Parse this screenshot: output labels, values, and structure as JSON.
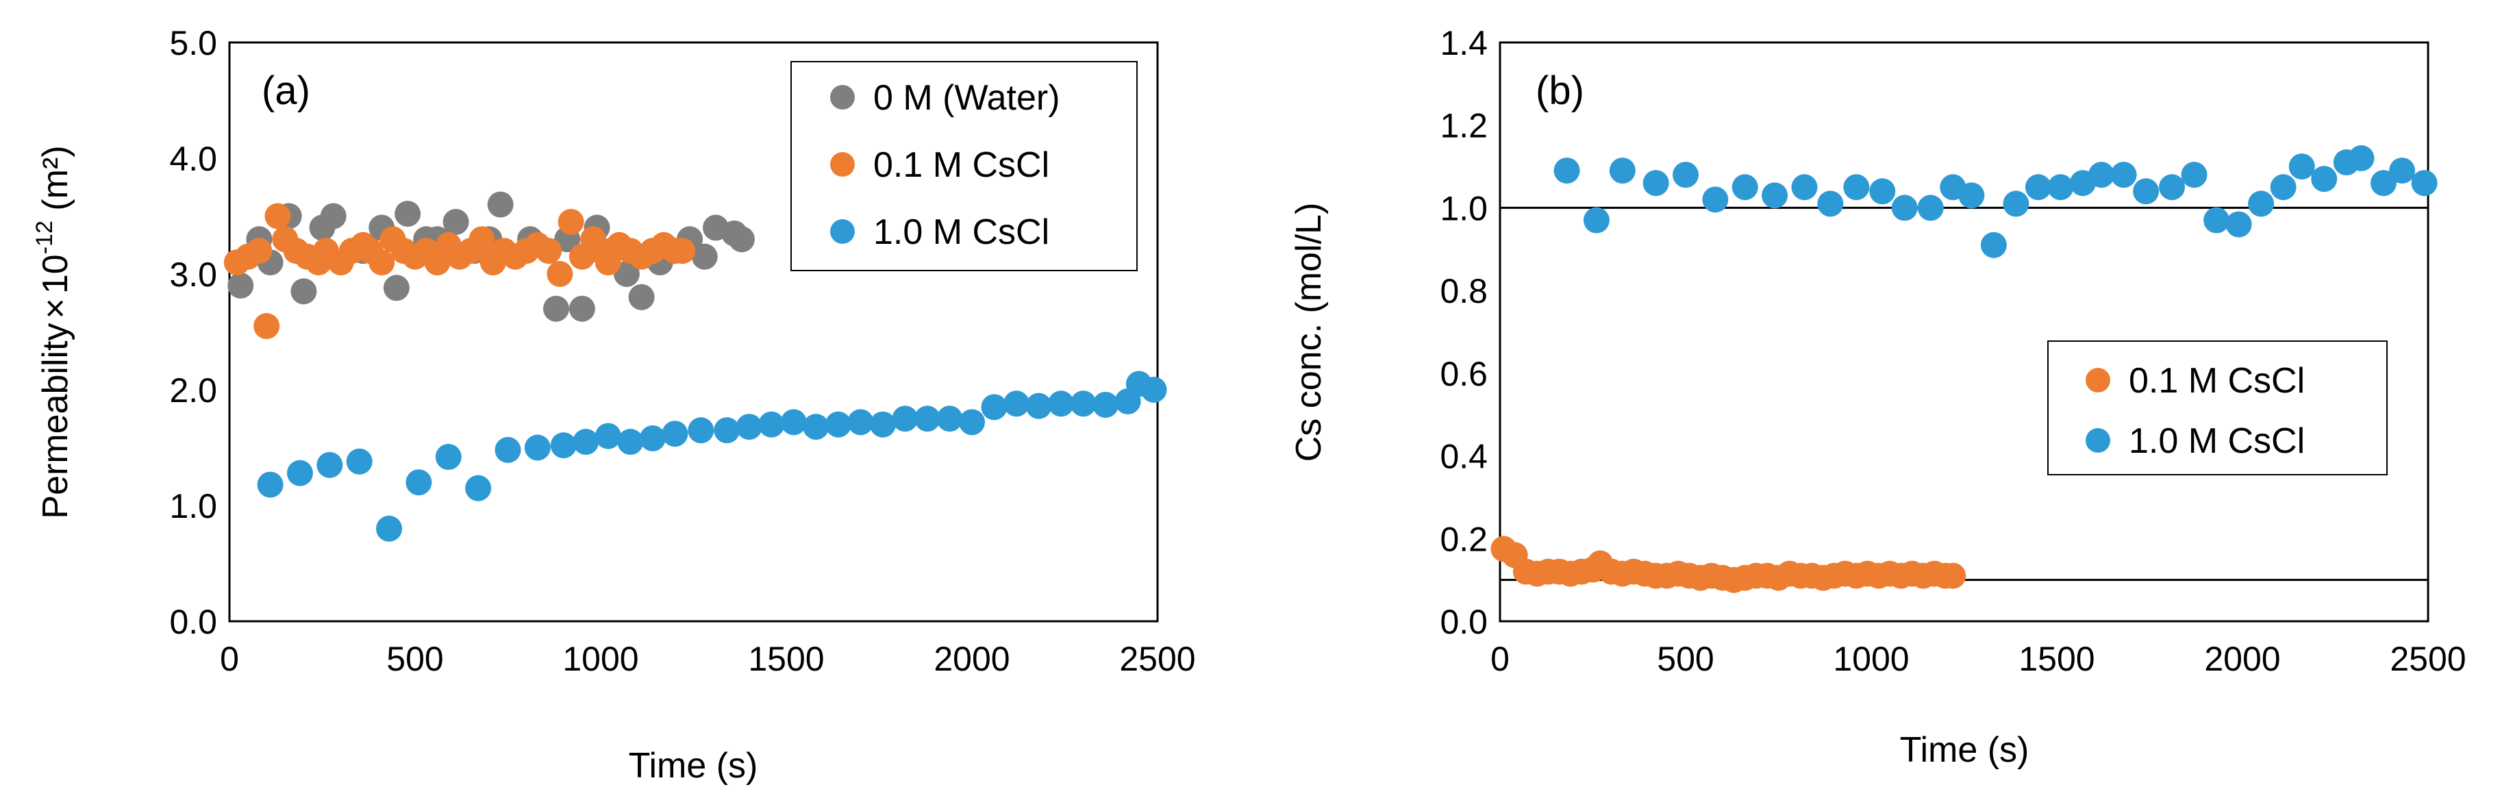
{
  "chart_data": [
    {
      "type": "scatter",
      "panel_label": "(a)",
      "xlabel": "Time (s)",
      "ylabel_main": "Permeability",
      "ylabel_times": "×",
      "ylabel_base": "10",
      "ylabel_exp": "-12",
      "ylabel_unit": " (m²)",
      "xlim": [
        0,
        2500
      ],
      "ylim": [
        0.0,
        5.0
      ],
      "x_ticks": [
        0,
        500,
        1000,
        1500,
        2000,
        2500
      ],
      "y_ticks": [
        0.0,
        1.0,
        2.0,
        3.0,
        4.0,
        5.0
      ],
      "x_tick_labels": [
        "0",
        "500",
        "1000",
        "1500",
        "2000",
        "2500"
      ],
      "y_tick_labels": [
        "0.0",
        "1.0",
        "2.0",
        "3.0",
        "4.0",
        "5.0"
      ],
      "grid": false,
      "legend_position": "top-right",
      "series": [
        {
          "name": "0 M (Water)",
          "color": "#7f7f7f",
          "points": [
            [
              30,
              2.9
            ],
            [
              80,
              3.3
            ],
            [
              110,
              3.1
            ],
            [
              160,
              3.5
            ],
            [
              200,
              2.85
            ],
            [
              250,
              3.4
            ],
            [
              280,
              3.5
            ],
            [
              360,
              3.2
            ],
            [
              410,
              3.4
            ],
            [
              450,
              2.88
            ],
            [
              480,
              3.52
            ],
            [
              530,
              3.3
            ],
            [
              560,
              3.3
            ],
            [
              610,
              3.45
            ],
            [
              660,
              3.2
            ],
            [
              700,
              3.3
            ],
            [
              730,
              3.6
            ],
            [
              810,
              3.3
            ],
            [
              880,
              2.7
            ],
            [
              910,
              3.3
            ],
            [
              950,
              2.7
            ],
            [
              990,
              3.4
            ],
            [
              1030,
              3.2
            ],
            [
              1070,
              3.0
            ],
            [
              1110,
              2.8
            ],
            [
              1160,
              3.1
            ],
            [
              1200,
              3.2
            ],
            [
              1240,
              3.3
            ],
            [
              1280,
              3.15
            ],
            [
              1310,
              3.4
            ],
            [
              1360,
              3.35
            ],
            [
              1380,
              3.3
            ]
          ]
        },
        {
          "name": "0.1 M CsCl",
          "color": "#ed7d31",
          "points": [
            [
              20,
              3.1
            ],
            [
              50,
              3.15
            ],
            [
              80,
              3.2
            ],
            [
              100,
              2.55
            ],
            [
              130,
              3.5
            ],
            [
              150,
              3.3
            ],
            [
              180,
              3.2
            ],
            [
              210,
              3.15
            ],
            [
              240,
              3.1
            ],
            [
              260,
              3.2
            ],
            [
              300,
              3.1
            ],
            [
              330,
              3.2
            ],
            [
              360,
              3.25
            ],
            [
              380,
              3.2
            ],
            [
              410,
              3.1
            ],
            [
              440,
              3.3
            ],
            [
              470,
              3.2
            ],
            [
              500,
              3.15
            ],
            [
              530,
              3.2
            ],
            [
              560,
              3.1
            ],
            [
              590,
              3.25
            ],
            [
              620,
              3.15
            ],
            [
              650,
              3.2
            ],
            [
              680,
              3.3
            ],
            [
              710,
              3.1
            ],
            [
              740,
              3.2
            ],
            [
              770,
              3.15
            ],
            [
              800,
              3.2
            ],
            [
              830,
              3.25
            ],
            [
              860,
              3.2
            ],
            [
              890,
              3.0
            ],
            [
              920,
              3.45
            ],
            [
              950,
              3.15
            ],
            [
              980,
              3.3
            ],
            [
              1000,
              3.2
            ],
            [
              1020,
              3.1
            ],
            [
              1050,
              3.25
            ],
            [
              1080,
              3.2
            ],
            [
              1110,
              3.15
            ],
            [
              1140,
              3.2
            ],
            [
              1170,
              3.25
            ],
            [
              1200,
              3.2
            ],
            [
              1220,
              3.2
            ]
          ]
        },
        {
          "name": "1.0 M CsCl",
          "color": "#2e9ad5",
          "points": [
            [
              110,
              1.18
            ],
            [
              190,
              1.28
            ],
            [
              270,
              1.35
            ],
            [
              350,
              1.38
            ],
            [
              430,
              0.8
            ],
            [
              510,
              1.2
            ],
            [
              590,
              1.42
            ],
            [
              670,
              1.15
            ],
            [
              750,
              1.48
            ],
            [
              830,
              1.5
            ],
            [
              900,
              1.52
            ],
            [
              960,
              1.55
            ],
            [
              1020,
              1.6
            ],
            [
              1080,
              1.55
            ],
            [
              1140,
              1.58
            ],
            [
              1200,
              1.62
            ],
            [
              1270,
              1.65
            ],
            [
              1340,
              1.65
            ],
            [
              1400,
              1.68
            ],
            [
              1460,
              1.7
            ],
            [
              1520,
              1.72
            ],
            [
              1580,
              1.68
            ],
            [
              1640,
              1.7
            ],
            [
              1700,
              1.72
            ],
            [
              1760,
              1.7
            ],
            [
              1820,
              1.75
            ],
            [
              1880,
              1.75
            ],
            [
              1940,
              1.75
            ],
            [
              2000,
              1.72
            ],
            [
              2060,
              1.85
            ],
            [
              2120,
              1.88
            ],
            [
              2180,
              1.86
            ],
            [
              2240,
              1.88
            ],
            [
              2300,
              1.88
            ],
            [
              2360,
              1.87
            ],
            [
              2420,
              1.9
            ],
            [
              2450,
              2.05
            ],
            [
              2490,
              2.0
            ]
          ]
        }
      ]
    },
    {
      "type": "scatter",
      "panel_label": "(b)",
      "xlabel": "Time (s)",
      "ylabel": "Cs conc. (mol/L)",
      "xlim": [
        0,
        2500
      ],
      "ylim": [
        0.0,
        1.4
      ],
      "x_ticks": [
        0,
        500,
        1000,
        1500,
        2000,
        2500
      ],
      "y_ticks": [
        0.0,
        0.2,
        0.4,
        0.6,
        0.8,
        1.0,
        1.2,
        1.4
      ],
      "x_tick_labels": [
        "0",
        "500",
        "1000",
        "1500",
        "2000",
        "2500"
      ],
      "y_tick_labels": [
        "0.0",
        "0.2",
        "0.4",
        "0.6",
        "0.8",
        "1.0",
        "1.2",
        "1.4"
      ],
      "grid": false,
      "legend_position": "center-right",
      "reference_lines": [
        1.0,
        0.1
      ],
      "series": [
        {
          "name": "0.1 M CsCl",
          "color": "#ed7d31",
          "points": [
            [
              10,
              0.175
            ],
            [
              40,
              0.16
            ],
            [
              70,
              0.12
            ],
            [
              100,
              0.115
            ],
            [
              130,
              0.12
            ],
            [
              160,
              0.12
            ],
            [
              190,
              0.115
            ],
            [
              220,
              0.12
            ],
            [
              250,
              0.125
            ],
            [
              270,
              0.14
            ],
            [
              300,
              0.12
            ],
            [
              330,
              0.115
            ],
            [
              360,
              0.12
            ],
            [
              390,
              0.115
            ],
            [
              420,
              0.11
            ],
            [
              450,
              0.11
            ],
            [
              480,
              0.115
            ],
            [
              510,
              0.11
            ],
            [
              540,
              0.105
            ],
            [
              570,
              0.11
            ],
            [
              600,
              0.105
            ],
            [
              630,
              0.1
            ],
            [
              660,
              0.105
            ],
            [
              690,
              0.11
            ],
            [
              720,
              0.11
            ],
            [
              750,
              0.105
            ],
            [
              780,
              0.115
            ],
            [
              810,
              0.11
            ],
            [
              840,
              0.11
            ],
            [
              870,
              0.105
            ],
            [
              900,
              0.11
            ],
            [
              930,
              0.115
            ],
            [
              960,
              0.11
            ],
            [
              990,
              0.115
            ],
            [
              1020,
              0.11
            ],
            [
              1050,
              0.115
            ],
            [
              1080,
              0.11
            ],
            [
              1110,
              0.115
            ],
            [
              1140,
              0.11
            ],
            [
              1170,
              0.115
            ],
            [
              1200,
              0.11
            ],
            [
              1220,
              0.11
            ]
          ]
        },
        {
          "name": "1.0 M CsCl",
          "color": "#2e9ad5",
          "points": [
            [
              180,
              1.09
            ],
            [
              260,
              0.97
            ],
            [
              330,
              1.09
            ],
            [
              420,
              1.06
            ],
            [
              500,
              1.08
            ],
            [
              580,
              1.02
            ],
            [
              660,
              1.05
            ],
            [
              740,
              1.03
            ],
            [
              820,
              1.05
            ],
            [
              890,
              1.01
            ],
            [
              960,
              1.05
            ],
            [
              1030,
              1.04
            ],
            [
              1090,
              1.0
            ],
            [
              1160,
              1.0
            ],
            [
              1220,
              1.05
            ],
            [
              1270,
              1.03
            ],
            [
              1330,
              0.91
            ],
            [
              1390,
              1.01
            ],
            [
              1450,
              1.05
            ],
            [
              1510,
              1.05
            ],
            [
              1570,
              1.06
            ],
            [
              1620,
              1.08
            ],
            [
              1680,
              1.08
            ],
            [
              1740,
              1.04
            ],
            [
              1810,
              1.05
            ],
            [
              1870,
              1.08
            ],
            [
              1930,
              0.97
            ],
            [
              1990,
              0.96
            ],
            [
              2050,
              1.01
            ],
            [
              2110,
              1.05
            ],
            [
              2160,
              1.1
            ],
            [
              2220,
              1.07
            ],
            [
              2280,
              1.11
            ],
            [
              2320,
              1.12
            ],
            [
              2380,
              1.06
            ],
            [
              2430,
              1.09
            ],
            [
              2490,
              1.06
            ]
          ]
        }
      ]
    }
  ]
}
